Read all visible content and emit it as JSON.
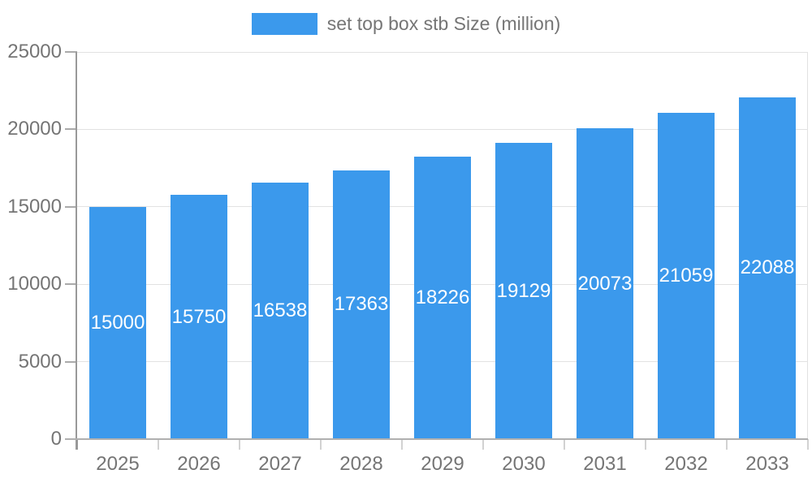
{
  "chart_data": {
    "type": "bar",
    "title": "",
    "legend": "set top box stb Size (million)",
    "categories": [
      "2025",
      "2026",
      "2027",
      "2028",
      "2029",
      "2030",
      "2031",
      "2032",
      "2033"
    ],
    "values": [
      15000,
      15750,
      16538,
      17363,
      18226,
      19129,
      20073,
      21059,
      22088
    ],
    "bar_value_labels": [
      "15000",
      "15750",
      "16538",
      "17363",
      "18226",
      "19129",
      "20073",
      "21059",
      "22088"
    ],
    "xlabel": "",
    "ylabel": "",
    "ylim": [
      0,
      25000
    ],
    "yticks": [
      0,
      5000,
      10000,
      15000,
      20000,
      25000
    ],
    "ytick_labels": [
      "0",
      "5000",
      "10000",
      "15000",
      "20000",
      "25000"
    ],
    "grid": true,
    "legend_position": "top-center",
    "colors": {
      "bar": "#3B99EC",
      "bar_label_text": "#FFFFFF",
      "axis_text": "#757575",
      "legend_text": "#757575",
      "gridline": "#E2E2E2",
      "right_border": "#E2E2E2",
      "y_axis_line": "#999999",
      "x_axis_line": "#B0B0B0",
      "y_tick_mark": "#AAAAAA",
      "x_tick_mark": "#D2D2D2",
      "background": "#FFFFFF"
    }
  }
}
